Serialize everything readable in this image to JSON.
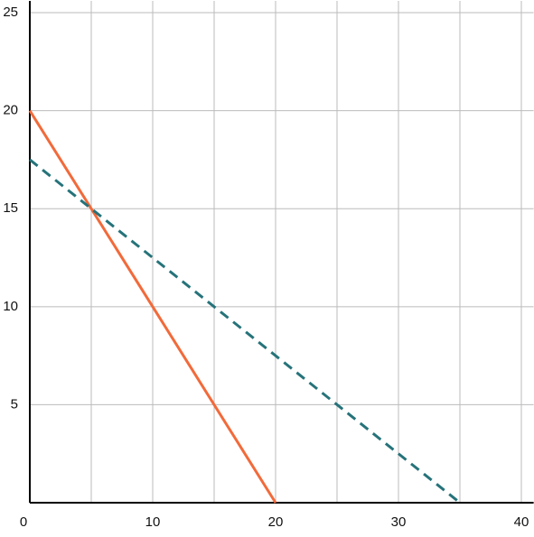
{
  "chart_data": {
    "type": "line",
    "xlim": [
      0,
      41
    ],
    "ylim": [
      0,
      25.6
    ],
    "xticks": [
      0,
      10,
      20,
      30,
      40
    ],
    "x_minor_ticks": [
      5,
      15,
      25,
      35
    ],
    "yticks": [
      5,
      10,
      15,
      20,
      25
    ],
    "grid": true,
    "series": [
      {
        "color": "#f26a3a",
        "dash": false,
        "x": [
          0,
          20
        ],
        "values": [
          20,
          0
        ]
      },
      {
        "color": "#26737a",
        "dash": true,
        "x": [
          0,
          35
        ],
        "values": [
          17.5,
          0
        ]
      }
    ]
  }
}
